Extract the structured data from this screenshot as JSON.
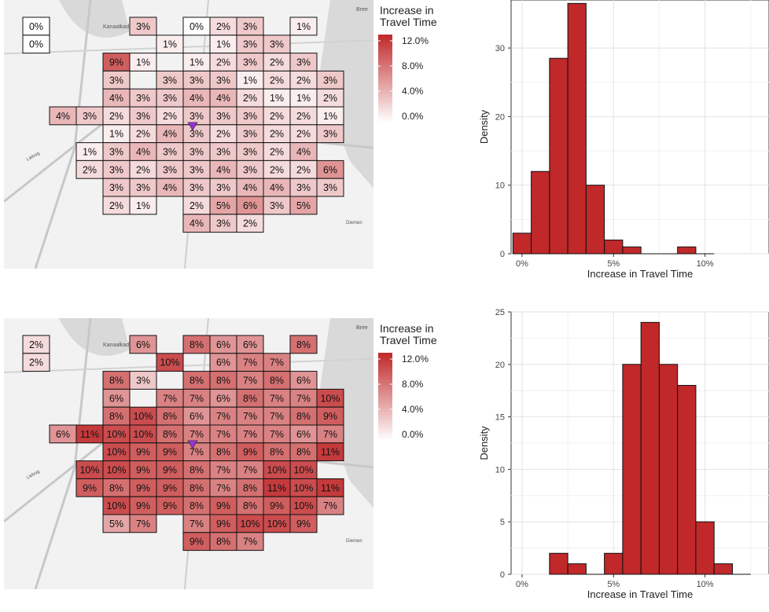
{
  "colors": {
    "bar_fill": "#c0282a",
    "cell_min": "#ffffff",
    "cell_max": "#c0282a",
    "marker": "#9b30d9",
    "map_bg": "#f2f2f2",
    "water": "#d9d9d9"
  },
  "map_labels": [
    "Kanaalkade",
    "Haarlemmer",
    "Liebog",
    "Diemen",
    "Bree"
  ],
  "chart_data": [
    {
      "type": "heatmap",
      "legend_title": "Increase in\nTravel Time",
      "legend_ticks": [
        "12.0%",
        "8.0%",
        "4.0%",
        "0.0%"
      ],
      "scale": [
        0,
        12
      ],
      "marker_cell": [
        6,
        5
      ],
      "grid": [
        [
          0,
          null,
          null,
          null,
          3,
          null,
          0,
          2,
          3,
          null,
          1,
          null
        ],
        [
          0,
          null,
          null,
          null,
          null,
          1,
          null,
          1,
          3,
          3,
          null,
          null
        ],
        [
          null,
          null,
          null,
          9,
          1,
          null,
          1,
          2,
          3,
          2,
          3,
          null
        ],
        [
          null,
          null,
          null,
          3,
          null,
          3,
          3,
          3,
          1,
          2,
          2,
          3
        ],
        [
          null,
          null,
          null,
          4,
          3,
          3,
          4,
          4,
          2,
          1,
          1,
          2
        ],
        [
          null,
          4,
          3,
          2,
          3,
          2,
          3,
          3,
          3,
          2,
          2,
          1
        ],
        [
          null,
          null,
          null,
          1,
          2,
          4,
          3,
          2,
          3,
          2,
          2,
          3
        ],
        [
          null,
          null,
          1,
          3,
          4,
          3,
          3,
          3,
          3,
          2,
          4,
          null
        ],
        [
          null,
          null,
          2,
          3,
          2,
          3,
          3,
          4,
          3,
          2,
          2,
          6
        ],
        [
          null,
          null,
          null,
          3,
          3,
          4,
          3,
          3,
          4,
          4,
          3,
          3
        ],
        [
          null,
          null,
          null,
          2,
          1,
          null,
          2,
          5,
          6,
          3,
          5,
          null
        ],
        [
          null,
          null,
          null,
          null,
          null,
          null,
          4,
          3,
          2,
          null,
          null,
          null
        ]
      ]
    },
    {
      "type": "bar",
      "xlabel": "Increase in Travel Time",
      "ylabel": "Density",
      "xticks": [
        "0%",
        "5%",
        "10%"
      ],
      "ylim": [
        0,
        37
      ],
      "yticks": [
        0,
        10,
        20,
        30
      ],
      "bin_width": 1,
      "bin_starts": [
        -0.5,
        0.5,
        1.5,
        2.5,
        3.5,
        4.5,
        5.5,
        6.5,
        7.5,
        8.5,
        9.5
      ],
      "values": [
        3,
        12,
        28.5,
        36.5,
        10,
        2,
        1,
        0,
        0,
        1,
        0
      ]
    },
    {
      "type": "heatmap",
      "legend_title": "Increase in\nTravel Time",
      "legend_ticks": [
        "12.0%",
        "8.0%",
        "4.0%",
        "0.0%"
      ],
      "scale": [
        0,
        12
      ],
      "marker_cell": [
        6,
        5
      ],
      "grid": [
        [
          2,
          null,
          null,
          null,
          6,
          null,
          8,
          6,
          6,
          null,
          8,
          null
        ],
        [
          2,
          null,
          null,
          null,
          null,
          10,
          null,
          6,
          7,
          7,
          null,
          null
        ],
        [
          null,
          null,
          null,
          8,
          3,
          null,
          8,
          8,
          7,
          8,
          6,
          null
        ],
        [
          null,
          null,
          null,
          6,
          null,
          7,
          7,
          6,
          8,
          7,
          7,
          10
        ],
        [
          null,
          null,
          null,
          8,
          10,
          8,
          6,
          7,
          7,
          7,
          8,
          9
        ],
        [
          null,
          6,
          11,
          10,
          10,
          8,
          7,
          7,
          7,
          7,
          6,
          7
        ],
        [
          null,
          null,
          null,
          10,
          9,
          9,
          7,
          8,
          9,
          8,
          8,
          11
        ],
        [
          null,
          null,
          10,
          10,
          9,
          9,
          8,
          7,
          7,
          10,
          10,
          null
        ],
        [
          null,
          null,
          9,
          8,
          9,
          9,
          8,
          7,
          8,
          11,
          10,
          11
        ],
        [
          null,
          null,
          null,
          10,
          9,
          9,
          8,
          9,
          8,
          9,
          10,
          7
        ],
        [
          null,
          null,
          null,
          5,
          7,
          null,
          7,
          9,
          10,
          10,
          9,
          null
        ],
        [
          null,
          null,
          null,
          null,
          null,
          null,
          9,
          8,
          7,
          null,
          null,
          null
        ]
      ]
    },
    {
      "type": "bar",
      "xlabel": "Increase in Travel Time",
      "ylabel": "Density",
      "xticks": [
        "0%",
        "5%",
        "10%"
      ],
      "ylim": [
        0,
        25
      ],
      "yticks": [
        0,
        5,
        10,
        15,
        20,
        25
      ],
      "bin_width": 1,
      "bin_starts": [
        1.5,
        2.5,
        3.5,
        4.5,
        5.5,
        6.5,
        7.5,
        8.5,
        9.5,
        10.5,
        11.5
      ],
      "values": [
        2,
        1,
        0,
        2,
        20,
        24,
        20,
        18,
        5,
        1,
        0
      ]
    }
  ]
}
